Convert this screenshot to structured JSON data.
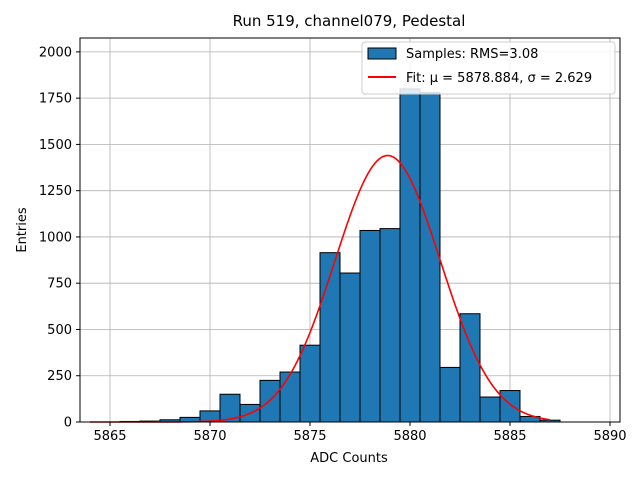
{
  "chart_data": {
    "type": "bar",
    "title": "Run 519, channel079, Pedestal",
    "xlabel": "ADC Counts",
    "ylabel": "Entries",
    "xlim": [
      5863.5,
      5890.5
    ],
    "ylim": [
      0,
      2075
    ],
    "grid": true,
    "legend_position": "top-right",
    "xticks": [
      5865,
      5870,
      5875,
      5880,
      5885,
      5890
    ],
    "yticks": [
      0,
      250,
      500,
      750,
      1000,
      1250,
      1500,
      1750,
      2000
    ],
    "bar_color": "#1f77b4",
    "fit_color": "#ff0000",
    "bins": [
      {
        "x": 5866,
        "value": 3
      },
      {
        "x": 5867,
        "value": 5
      },
      {
        "x": 5868,
        "value": 12
      },
      {
        "x": 5869,
        "value": 25
      },
      {
        "x": 5870,
        "value": 60
      },
      {
        "x": 5871,
        "value": 150
      },
      {
        "x": 5872,
        "value": 95
      },
      {
        "x": 5873,
        "value": 225
      },
      {
        "x": 5874,
        "value": 270
      },
      {
        "x": 5875,
        "value": 415
      },
      {
        "x": 5876,
        "value": 915
      },
      {
        "x": 5877,
        "value": 805
      },
      {
        "x": 5878,
        "value": 1035
      },
      {
        "x": 5879,
        "value": 1045
      },
      {
        "x": 5880,
        "value": 1800
      },
      {
        "x": 5881,
        "value": 1780
      },
      {
        "x": 5882,
        "value": 295
      },
      {
        "x": 5883,
        "value": 585
      },
      {
        "x": 5884,
        "value": 135
      },
      {
        "x": 5885,
        "value": 170
      },
      {
        "x": 5886,
        "value": 30
      },
      {
        "x": 5887,
        "value": 10
      }
    ],
    "fit": {
      "mu": 5878.884,
      "sigma": 2.629,
      "amplitude": 1440,
      "x_start": 5864,
      "x_end": 5887
    },
    "legend": [
      {
        "label": "Samples: RMS=3.08",
        "kind": "patch"
      },
      {
        "label": "Fit: μ = 5878.884, σ = 2.629",
        "kind": "line"
      }
    ]
  }
}
